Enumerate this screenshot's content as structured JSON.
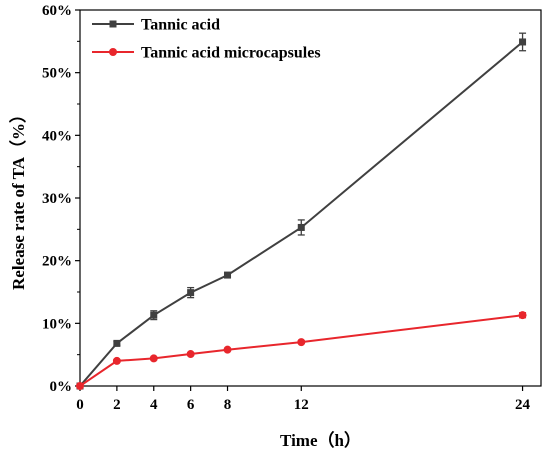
{
  "chart_data": {
    "type": "line",
    "xlabel": "Time（h）",
    "ylabel": "Release rate of TA（%）",
    "xlim": [
      0,
      25
    ],
    "ylim": [
      0,
      60
    ],
    "x_ticks": [
      0,
      2,
      4,
      6,
      8,
      12,
      24
    ],
    "x_tick_labels": [
      "0",
      "2",
      "4",
      "6",
      "8",
      "12",
      "24"
    ],
    "y_ticks": [
      0,
      10,
      20,
      30,
      40,
      50,
      60
    ],
    "y_tick_labels": [
      "0%",
      "10%",
      "20%",
      "30%",
      "40%",
      "50%",
      "60%"
    ],
    "grid": false,
    "legend_position": "top-left",
    "series": [
      {
        "name": "Tannic acid",
        "color": "#404040",
        "marker": "square",
        "x": [
          0,
          2,
          4,
          6,
          8,
          12,
          24
        ],
        "y": [
          0,
          6.8,
          11.3,
          14.9,
          17.7,
          25.3,
          54.9
        ],
        "error": [
          0,
          0.3,
          0.7,
          0.8,
          0.3,
          1.2,
          1.4
        ]
      },
      {
        "name": "Tannic acid microcapsules",
        "color": "#e8262c",
        "marker": "circle",
        "x": [
          0,
          2,
          4,
          6,
          8,
          12,
          24
        ],
        "y": [
          0,
          4.0,
          4.4,
          5.1,
          5.8,
          7.0,
          11.3
        ],
        "error": [
          0,
          0.2,
          0.2,
          0.2,
          0.2,
          0.2,
          0.4
        ]
      }
    ]
  }
}
